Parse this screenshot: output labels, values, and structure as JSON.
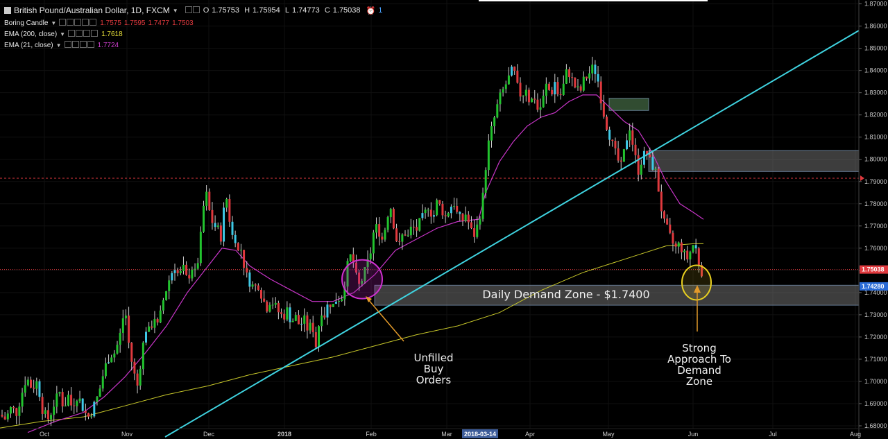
{
  "header": {
    "symbol": "British Pound/Australian Dollar, 1D, FXCM",
    "ohlc": {
      "o_label": "O",
      "o": "1.75753",
      "h_label": "H",
      "h": "1.75954",
      "l_label": "L",
      "l": "1.74773",
      "c_label": "C",
      "c": "1.75038"
    },
    "alerts": "1",
    "indicators": [
      {
        "name": "Boring Candle",
        "values": [
          "1.7575",
          "1.7595",
          "1.7477",
          "1.7503"
        ]
      },
      {
        "name": "EMA (200, close)",
        "value": "1.7618"
      },
      {
        "name": "EMA (21, close)",
        "value": "1.7724"
      }
    ]
  },
  "colors": {
    "background": "#000000",
    "up_candle": "#22c32e",
    "down_candle": "#e0393e",
    "accent_candle": "#3ec9e6",
    "ema200": "#c8c82a",
    "ema21": "#c835c8",
    "trendline": "#3fd3e0",
    "price_label": "#e0393e",
    "blue_label": "#2a6bd6"
  },
  "chart_data": {
    "type": "candlestick",
    "title": "British Pound/Australian Dollar, 1D, FXCM",
    "x_ticks": [
      "Oct",
      "Nov",
      "Dec",
      "2018",
      "Feb",
      "Mar",
      "2018-03-14",
      "Apr",
      "May",
      "Jun",
      "Jul",
      "Aug"
    ],
    "y_ticks": [
      "1.87000",
      "1.86000",
      "1.85000",
      "1.84000",
      "1.83000",
      "1.82000",
      "1.81000",
      "1.80000",
      "1.79000",
      "1.78000",
      "1.77000",
      "1.76000",
      "1.75000",
      "1.74000",
      "1.73000",
      "1.72000",
      "1.71000",
      "1.70000",
      "1.69000",
      "1.68000"
    ],
    "ylim": [
      1.675,
      1.8705
    ],
    "price_labels": {
      "last": "1.75038",
      "zone": "1.74280"
    },
    "close_path": [
      [
        0,
        1.685
      ],
      [
        8,
        1.683
      ],
      [
        16,
        1.688
      ],
      [
        24,
        1.686
      ],
      [
        30,
        1.693
      ],
      [
        38,
        1.702
      ],
      [
        46,
        1.697
      ],
      [
        54,
        1.7
      ],
      [
        62,
        1.686
      ],
      [
        70,
        1.683
      ],
      [
        78,
        1.69
      ],
      [
        86,
        1.695
      ],
      [
        92,
        1.688
      ],
      [
        98,
        1.694
      ],
      [
        104,
        1.688
      ],
      [
        110,
        1.694
      ],
      [
        116,
        1.691
      ],
      [
        122,
        1.686
      ],
      [
        128,
        1.684
      ],
      [
        134,
        1.688
      ],
      [
        142,
        1.694
      ],
      [
        150,
        1.705
      ],
      [
        158,
        1.712
      ],
      [
        166,
        1.713
      ],
      [
        174,
        1.722
      ],
      [
        180,
        1.734
      ],
      [
        186,
        1.716
      ],
      [
        192,
        1.705
      ],
      [
        198,
        1.698
      ],
      [
        204,
        1.712
      ],
      [
        210,
        1.724
      ],
      [
        216,
        1.722
      ],
      [
        222,
        1.73
      ],
      [
        228,
        1.724
      ],
      [
        234,
        1.735
      ],
      [
        240,
        1.742
      ],
      [
        246,
        1.748
      ],
      [
        252,
        1.752
      ],
      [
        258,
        1.747
      ],
      [
        264,
        1.751
      ],
      [
        270,
        1.745
      ],
      [
        276,
        1.752
      ],
      [
        282,
        1.748
      ],
      [
        288,
        1.76
      ],
      [
        292,
        1.775
      ],
      [
        296,
        1.785
      ],
      [
        300,
        1.782
      ],
      [
        304,
        1.77
      ],
      [
        308,
        1.774
      ],
      [
        312,
        1.766
      ],
      [
        316,
        1.77
      ],
      [
        320,
        1.762
      ],
      [
        324,
        1.785
      ],
      [
        328,
        1.781
      ],
      [
        332,
        1.77
      ],
      [
        336,
        1.764
      ],
      [
        340,
        1.765
      ],
      [
        344,
        1.757
      ],
      [
        348,
        1.76
      ],
      [
        352,
        1.752
      ],
      [
        356,
        1.747
      ],
      [
        360,
        1.745
      ],
      [
        366,
        1.742
      ],
      [
        372,
        1.744
      ],
      [
        378,
        1.738
      ],
      [
        384,
        1.733
      ],
      [
        390,
        1.737
      ],
      [
        396,
        1.734
      ],
      [
        402,
        1.731
      ],
      [
        408,
        1.729
      ],
      [
        414,
        1.732
      ],
      [
        420,
        1.727
      ],
      [
        426,
        1.729
      ],
      [
        432,
        1.725
      ],
      [
        438,
        1.728
      ],
      [
        444,
        1.723
      ],
      [
        450,
        1.726
      ],
      [
        456,
        1.715
      ],
      [
        462,
        1.733
      ],
      [
        468,
        1.73
      ],
      [
        474,
        1.736
      ],
      [
        480,
        1.734
      ],
      [
        486,
        1.738
      ],
      [
        492,
        1.737
      ],
      [
        498,
        1.747
      ],
      [
        504,
        1.757
      ],
      [
        510,
        1.753
      ],
      [
        516,
        1.742
      ],
      [
        522,
        1.746
      ],
      [
        528,
        1.751
      ],
      [
        534,
        1.758
      ],
      [
        540,
        1.77
      ],
      [
        546,
        1.768
      ],
      [
        552,
        1.763
      ],
      [
        558,
        1.775
      ],
      [
        564,
        1.779
      ],
      [
        570,
        1.765
      ],
      [
        576,
        1.761
      ],
      [
        582,
        1.768
      ],
      [
        588,
        1.765
      ],
      [
        594,
        1.77
      ],
      [
        600,
        1.768
      ],
      [
        606,
        1.772
      ],
      [
        612,
        1.775
      ],
      [
        618,
        1.78
      ],
      [
        624,
        1.773
      ],
      [
        630,
        1.781
      ],
      [
        636,
        1.778
      ],
      [
        642,
        1.774
      ],
      [
        648,
        1.778
      ],
      [
        654,
        1.781
      ],
      [
        660,
        1.774
      ],
      [
        666,
        1.772
      ],
      [
        672,
        1.776
      ],
      [
        678,
        1.768
      ],
      [
        684,
        1.766
      ],
      [
        690,
        1.772
      ],
      [
        696,
        1.783
      ],
      [
        702,
        1.803
      ],
      [
        706,
        1.81
      ],
      [
        710,
        1.815
      ],
      [
        716,
        1.823
      ],
      [
        722,
        1.829
      ],
      [
        728,
        1.833
      ],
      [
        734,
        1.837
      ],
      [
        740,
        1.841
      ],
      [
        746,
        1.832
      ],
      [
        752,
        1.828
      ],
      [
        758,
        1.833
      ],
      [
        764,
        1.825
      ],
      [
        770,
        1.829
      ],
      [
        776,
        1.821
      ],
      [
        782,
        1.826
      ],
      [
        788,
        1.834
      ],
      [
        794,
        1.829
      ],
      [
        800,
        1.835
      ],
      [
        806,
        1.827
      ],
      [
        812,
        1.833
      ],
      [
        818,
        1.841
      ],
      [
        824,
        1.836
      ],
      [
        830,
        1.832
      ],
      [
        836,
        1.83
      ],
      [
        842,
        1.836
      ],
      [
        848,
        1.838
      ],
      [
        854,
        1.841
      ],
      [
        860,
        1.839
      ],
      [
        866,
        1.828
      ],
      [
        872,
        1.818
      ],
      [
        878,
        1.812
      ],
      [
        884,
        1.805
      ],
      [
        890,
        1.8
      ],
      [
        896,
        1.796
      ],
      [
        902,
        1.808
      ],
      [
        908,
        1.815
      ],
      [
        914,
        1.803
      ],
      [
        920,
        1.795
      ],
      [
        926,
        1.801
      ],
      [
        932,
        1.803
      ],
      [
        938,
        1.798
      ],
      [
        944,
        1.796
      ],
      [
        950,
        1.785
      ],
      [
        956,
        1.772
      ],
      [
        962,
        1.768
      ],
      [
        968,
        1.763
      ],
      [
        974,
        1.76
      ],
      [
        980,
        1.762
      ],
      [
        986,
        1.757
      ],
      [
        992,
        1.755
      ],
      [
        998,
        1.762
      ],
      [
        1004,
        1.759
      ],
      [
        1010,
        1.749
      ],
      [
        1014,
        1.751
      ]
    ],
    "ema200_path": [
      [
        0,
        1.679
      ],
      [
        60,
        1.682
      ],
      [
        120,
        1.684
      ],
      [
        180,
        1.689
      ],
      [
        240,
        1.694
      ],
      [
        300,
        1.698
      ],
      [
        360,
        1.703
      ],
      [
        420,
        1.707
      ],
      [
        480,
        1.711
      ],
      [
        540,
        1.716
      ],
      [
        600,
        1.721
      ],
      [
        660,
        1.725
      ],
      [
        720,
        1.731
      ],
      [
        780,
        1.741
      ],
      [
        840,
        1.749
      ],
      [
        880,
        1.753
      ],
      [
        920,
        1.757
      ],
      [
        960,
        1.761
      ],
      [
        1000,
        1.762
      ],
      [
        1014,
        1.762
      ]
    ],
    "ema21_path": [
      [
        40,
        1.677
      ],
      [
        80,
        1.682
      ],
      [
        120,
        1.686
      ],
      [
        150,
        1.693
      ],
      [
        180,
        1.702
      ],
      [
        210,
        1.713
      ],
      [
        240,
        1.725
      ],
      [
        270,
        1.74
      ],
      [
        300,
        1.752
      ],
      [
        320,
        1.76
      ],
      [
        340,
        1.759
      ],
      [
        360,
        1.752
      ],
      [
        390,
        1.746
      ],
      [
        420,
        1.741
      ],
      [
        450,
        1.736
      ],
      [
        480,
        1.736
      ],
      [
        510,
        1.74
      ],
      [
        540,
        1.748
      ],
      [
        570,
        1.759
      ],
      [
        600,
        1.764
      ],
      [
        630,
        1.769
      ],
      [
        660,
        1.772
      ],
      [
        690,
        1.773
      ],
      [
        700,
        1.785
      ],
      [
        720,
        1.799
      ],
      [
        740,
        1.808
      ],
      [
        760,
        1.815
      ],
      [
        780,
        1.819
      ],
      [
        800,
        1.821
      ],
      [
        820,
        1.826
      ],
      [
        840,
        1.829
      ],
      [
        860,
        1.829
      ],
      [
        880,
        1.823
      ],
      [
        900,
        1.817
      ],
      [
        920,
        1.813
      ],
      [
        940,
        1.803
      ],
      [
        960,
        1.79
      ],
      [
        980,
        1.78
      ],
      [
        1000,
        1.776
      ],
      [
        1014,
        1.773
      ]
    ],
    "trendline": [
      [
        238,
        1.675
      ],
      [
        1238,
        1.858
      ]
    ],
    "zones": [
      {
        "x0": 878,
        "x1": 935,
        "top": 1.8275,
        "bottom": 1.822,
        "fill": "#5a8a5a",
        "opacity": 0.55
      },
      {
        "x0": 935,
        "x1": 1238,
        "top": 1.804,
        "bottom": 1.7945,
        "fill": "#888888",
        "opacity": 0.45
      },
      {
        "x0": 540,
        "x1": 1238,
        "top": 1.7433,
        "bottom": 1.7343,
        "fill": "#888888",
        "opacity": 0.45
      }
    ],
    "hlines": [
      {
        "y": 1.7915,
        "color": "#e0393e",
        "dash": "3,3"
      },
      {
        "y": 1.7504,
        "color": "#e0393e",
        "dash": "1,2"
      }
    ],
    "annotations": {
      "zone_label": "Daily Demand Zone - $1.7400",
      "left_note": [
        "Unfilled",
        "Buy",
        "Orders"
      ],
      "right_note": [
        "Strong",
        "Approach To",
        "Demand",
        "Zone"
      ]
    }
  }
}
